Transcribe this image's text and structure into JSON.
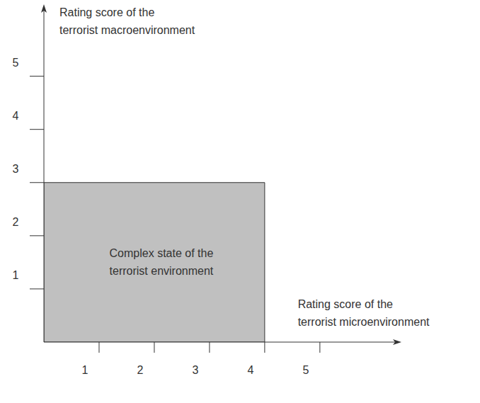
{
  "chart_data": {
    "type": "region",
    "x_label": "Rating score of the\nterrorist microenvironment",
    "y_label": "Rating score of the\nterrorist macroenvironment",
    "xlim": [
      0,
      6.4
    ],
    "ylim": [
      0,
      6.3
    ],
    "xticks": [
      1,
      2,
      3,
      4,
      5
    ],
    "yticks": [
      1,
      2,
      3,
      4,
      5
    ],
    "grid": false,
    "regions": [
      {
        "label": "Complex state of the\nterrorist environment",
        "x": [
          0,
          4
        ],
        "y": [
          0,
          3
        ],
        "color": "#c0c0c0"
      }
    ]
  }
}
